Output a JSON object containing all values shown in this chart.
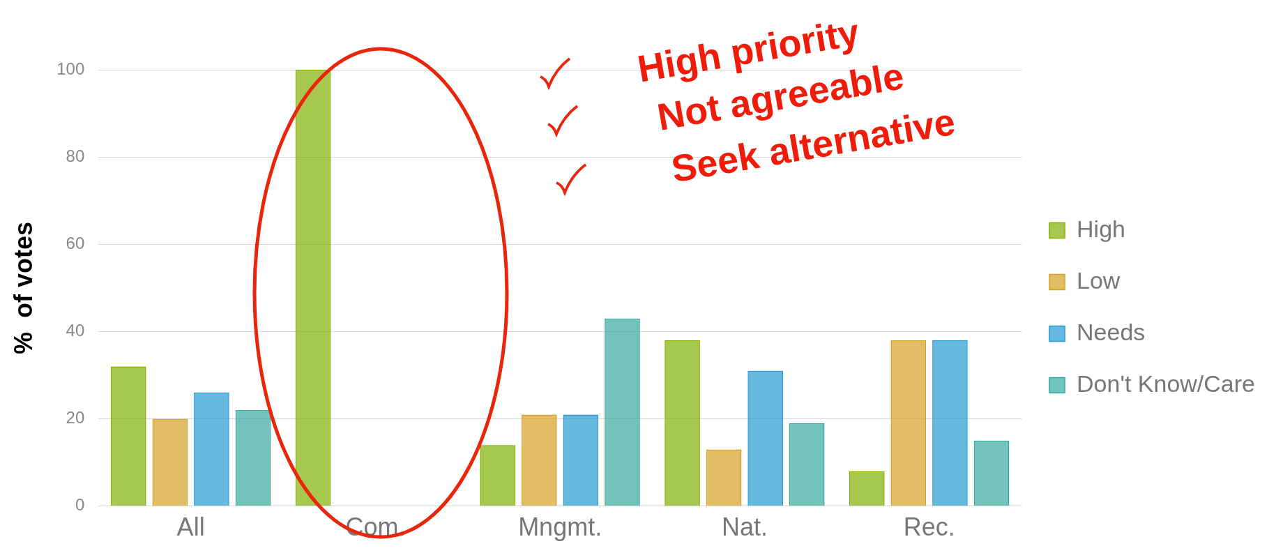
{
  "chart_data": {
    "type": "bar",
    "ylabel": "%  of votes",
    "categories": [
      "All",
      "Com.",
      "Mngmt.",
      "Nat.",
      "Rec."
    ],
    "series": [
      {
        "name": "High",
        "color": "#7fb000",
        "values": [
          32,
          100,
          14,
          38,
          8
        ]
      },
      {
        "name": "Low",
        "color": "#d4a020",
        "values": [
          20,
          0,
          21,
          13,
          38
        ]
      },
      {
        "name": "Needs",
        "color": "#2398d0",
        "values": [
          26,
          0,
          21,
          31,
          38
        ]
      },
      {
        "name": "Don't Know/Care",
        "color": "#33a89e",
        "values": [
          22,
          0,
          43,
          19,
          15
        ]
      }
    ],
    "ylim": [
      0,
      100
    ],
    "yticks": [
      0,
      20,
      40,
      60,
      80,
      100
    ],
    "grid": "y",
    "legend": "right",
    "annotations": [
      "High priority",
      "Not agreeable",
      "Seek alternative"
    ]
  }
}
